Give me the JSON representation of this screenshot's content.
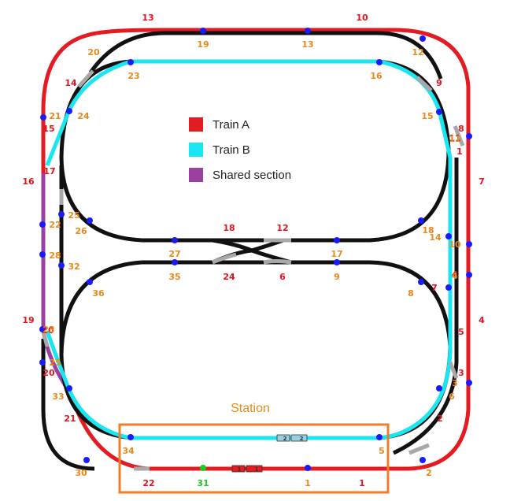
{
  "legend": [
    {
      "label": "Train A",
      "color": "#e31b23"
    },
    {
      "label": "Train B",
      "color": "#19e6f0"
    },
    {
      "label": "Shared section",
      "color": "#9b3fa0"
    }
  ],
  "station": {
    "label": "Station",
    "border_color": "#f07d28"
  },
  "trains": {
    "train_a": {
      "cars": [
        "1",
        "1"
      ],
      "color": "#e31b23"
    },
    "train_b": {
      "cars": [
        "2",
        "2"
      ],
      "color": "#9ad0e0"
    }
  },
  "labels_red": [
    "13",
    "10",
    "9",
    "8",
    "7",
    "4",
    "3",
    "2",
    "1",
    "22",
    "21",
    "20",
    "19",
    "16",
    "15",
    "14",
    "18",
    "12",
    "24",
    "6",
    "5",
    "11",
    "1",
    "4",
    "7",
    "17",
    "20"
  ],
  "labels_orange": [
    "20",
    "19",
    "13",
    "12",
    "23",
    "16",
    "21",
    "24",
    "15",
    "11",
    "10",
    "14",
    "18",
    "25",
    "26",
    "22",
    "28",
    "32",
    "27",
    "17",
    "35",
    "9",
    "36",
    "8",
    "4",
    "3",
    "6",
    "33",
    "25",
    "34",
    "5",
    "30",
    "1",
    "2",
    "23"
  ],
  "labels_green": [
    "31"
  ]
}
